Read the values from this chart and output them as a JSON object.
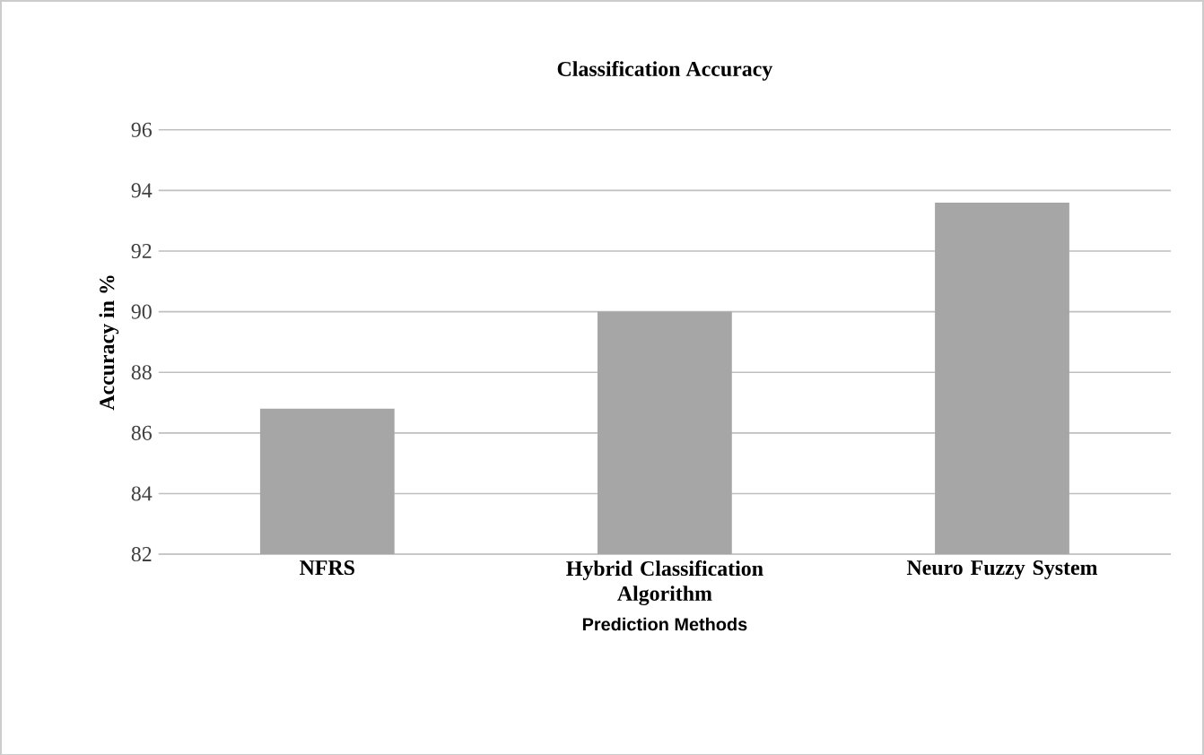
{
  "chart_data": {
    "type": "bar",
    "title": "Classification Accuracy",
    "xlabel": "Prediction Methods",
    "ylabel": "Accuracy in %",
    "categories": [
      "NFRS",
      "Hybrid Classification Algorithm",
      "Neuro Fuzzy System"
    ],
    "values": [
      86.8,
      90.0,
      93.6
    ],
    "color": "#a6a6a6",
    "ylim": [
      82,
      96
    ],
    "yticks": [
      82,
      84,
      86,
      88,
      90,
      92,
      94,
      96
    ],
    "grid": "y"
  }
}
